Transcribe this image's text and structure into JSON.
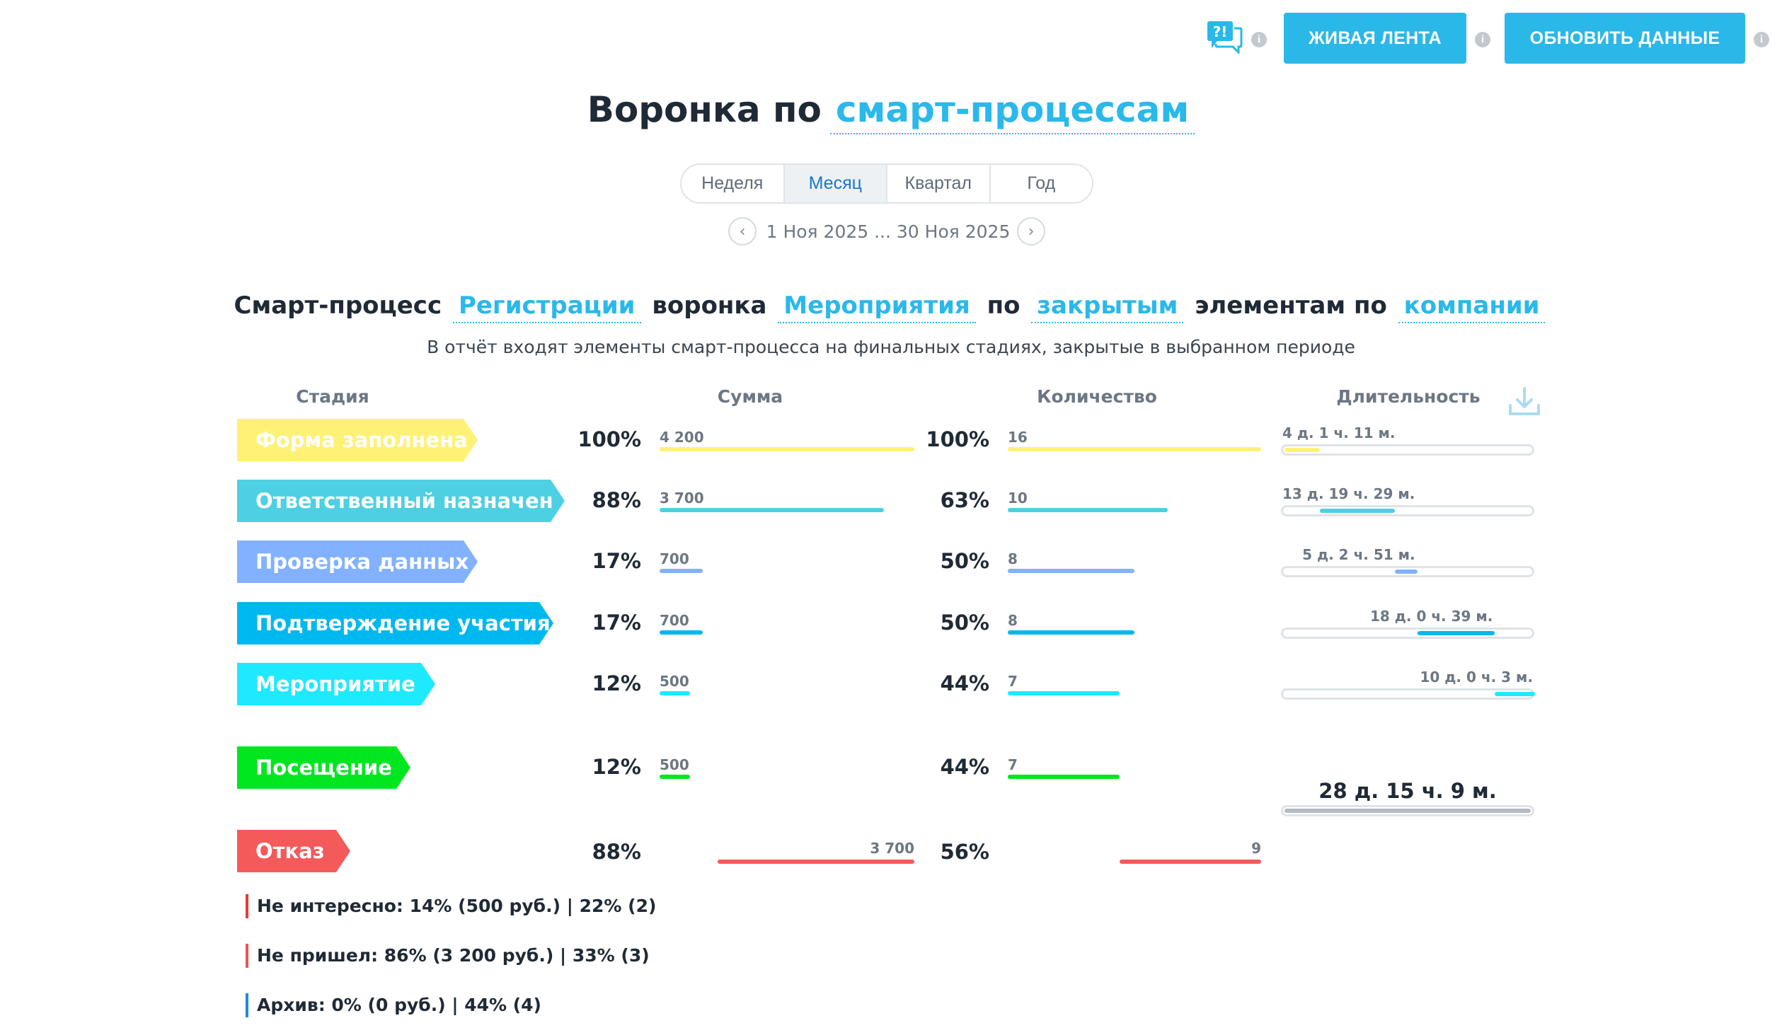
{
  "toolbar": {
    "live_label": "ЖИВАЯ ЛЕНТА",
    "refresh_label": "ОБНОВИТЬ ДАННЫЕ",
    "help_icon": "question-chat-icon",
    "info_icon": "info-icon",
    "info_glyph": "i"
  },
  "title": {
    "prefix": "Воронка по",
    "link": "смарт-процессам"
  },
  "periods": {
    "tabs": [
      "Неделя",
      "Месяц",
      "Квартал",
      "Год"
    ],
    "active": "Месяц"
  },
  "date_range": "1 Ноя 2025 ... 30 Ноя 2025",
  "subtitle": {
    "w1": "Смарт-процесс",
    "l1": "Регистрации",
    "w2": "воронка",
    "l2": "Мероприятия",
    "w3": "по",
    "l3": "закрытым",
    "w4": "элементам по",
    "l4": "компании"
  },
  "note": "В отчёт входят элементы смарт-процесса на финальных стадиях, закрытые в выбранном периоде",
  "headers": {
    "stage": "Стадия",
    "sum": "Сумма",
    "qty": "Количество",
    "duration": "Длительность"
  },
  "stages": [
    {
      "name": "Форма заполнена",
      "color": "#fff176",
      "sum_pct": "100%",
      "sum": "4 200",
      "sum_frac": 1.0,
      "qty_pct": "100%",
      "qty": "16",
      "qty_frac": 1.0,
      "duration": "4 д. 1 ч. 11 м.",
      "dur_start": 0.0,
      "dur_frac": 0.14
    },
    {
      "name": "Ответственный назначен",
      "color": "#4dd0e1",
      "sum_pct": "88%",
      "sum": "3 700",
      "sum_frac": 0.88,
      "qty_pct": "63%",
      "qty": "10",
      "qty_frac": 0.63,
      "duration": "13 д. 19 ч. 29 м.",
      "dur_start": 0.14,
      "dur_frac": 0.3
    },
    {
      "name": "Проверка данных",
      "color": "#82b1ff",
      "sum_pct": "17%",
      "sum": "700",
      "sum_frac": 0.17,
      "qty_pct": "50%",
      "qty": "8",
      "qty_frac": 0.5,
      "duration": "5 д. 2 ч. 51 м.",
      "dur_start": 0.44,
      "dur_frac": 0.09
    },
    {
      "name": "Подтверждение участия",
      "color": "#00b8f0",
      "sum_pct": "17%",
      "sum": "700",
      "sum_frac": 0.17,
      "qty_pct": "50%",
      "qty": "8",
      "qty_frac": 0.5,
      "duration": "18 д. 0 ч. 39 м.",
      "dur_start": 0.53,
      "dur_frac": 0.31
    },
    {
      "name": "Мероприятие",
      "color": "#1de9ff",
      "sum_pct": "12%",
      "sum": "500",
      "sum_frac": 0.12,
      "qty_pct": "44%",
      "qty": "7",
      "qty_frac": 0.44,
      "duration": "10 д. 0 ч. 3 м.",
      "dur_start": 0.84,
      "dur_frac": 0.16
    },
    {
      "name": "Посещение",
      "color": "#00e61f",
      "sum_pct": "12%",
      "sum": "500",
      "sum_frac": 0.12,
      "qty_pct": "44%",
      "qty": "7",
      "qty_frac": 0.44
    }
  ],
  "total_duration": "28 д. 15 ч. 9 м.",
  "refusal": {
    "name": "Отказ",
    "color": "#f45a5a",
    "sum_pct": "88%",
    "sum": "3 700",
    "sum_frac": 0.88,
    "qty_pct": "56%",
    "qty": "9",
    "qty_frac": 0.56
  },
  "reasons": [
    {
      "text": "Не интересно: 14% (500 руб.) | 22% (2)",
      "color": "#e53935"
    },
    {
      "text": "Не пришел: 86% (3 200 руб.) | 33% (3)",
      "color": "#ef5350"
    },
    {
      "text": "Архив: 0% (0 руб.) | 44% (4)",
      "color": "#1e88e5"
    }
  ]
}
